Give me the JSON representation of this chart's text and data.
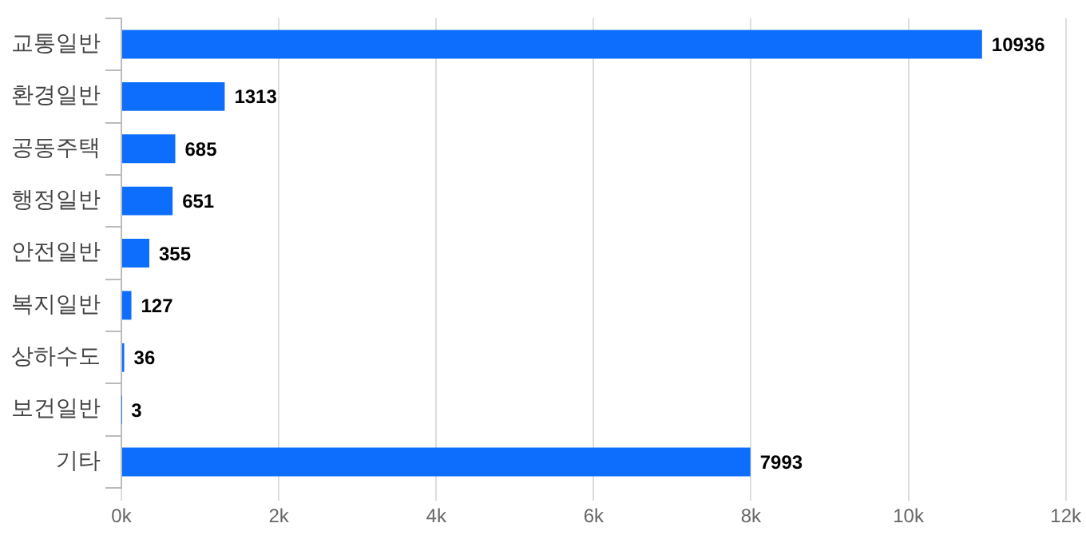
{
  "chart_data": {
    "type": "bar",
    "orientation": "horizontal",
    "categories": [
      "교통일반",
      "환경일반",
      "공동주택",
      "행정일반",
      "안전일반",
      "복지일반",
      "상하수도",
      "보건일반",
      "기타"
    ],
    "values": [
      10936,
      1313,
      685,
      651,
      355,
      127,
      36,
      3,
      7993
    ],
    "color": "#0d6efd",
    "xlim": [
      0,
      12000
    ],
    "xticks": [
      {
        "value": 0,
        "label": "0k"
      },
      {
        "value": 2000,
        "label": "2k"
      },
      {
        "value": 4000,
        "label": "4k"
      },
      {
        "value": 6000,
        "label": "6k"
      },
      {
        "value": 8000,
        "label": "8k"
      },
      {
        "value": 10000,
        "label": "10k"
      },
      {
        "value": 12000,
        "label": "12k"
      }
    ],
    "grid": "x",
    "legend": false,
    "data_labels": true
  }
}
